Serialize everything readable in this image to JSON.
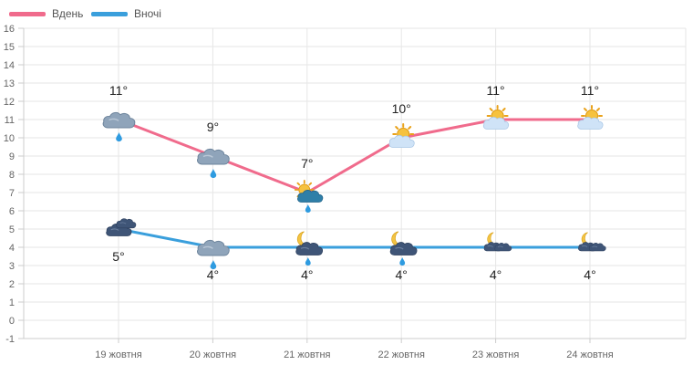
{
  "chart_data": {
    "type": "line",
    "categories": [
      "19 жовтня",
      "20 жовтня",
      "21 жовтня",
      "22 жовтня",
      "23 жовтня",
      "24 жовтня"
    ],
    "series": [
      {
        "name": "Вдень",
        "values": [
          11,
          9,
          7,
          10,
          11,
          11
        ],
        "labels": [
          "11°",
          "9°",
          "7°",
          "10°",
          "11°",
          "11°"
        ],
        "icons": [
          "cloud-rain-icon",
          "cloud-rain-icon",
          "sun-cloud-rain-icon",
          "sun-cloud-icon",
          "sun-cloud-icon",
          "sun-cloud-icon"
        ],
        "color": "#f06b8c"
      },
      {
        "name": "Вночі",
        "values": [
          5,
          4,
          4,
          4,
          4,
          4
        ],
        "labels": [
          "5°",
          "4°",
          "4°",
          "4°",
          "4°",
          "4°"
        ],
        "icons": [
          "dark-cloud-icon",
          "cloud-rain-icon",
          "moon-cloud-rain-icon",
          "moon-cloud-rain-icon",
          "moon-cloud-icon",
          "moon-cloud-icon"
        ],
        "color": "#3a9fdc"
      }
    ],
    "yticks": [
      "-1",
      "0",
      "1",
      "2",
      "3",
      "4",
      "5",
      "6",
      "7",
      "8",
      "9",
      "10",
      "11",
      "12",
      "13",
      "14",
      "15",
      "16"
    ],
    "ylim": [
      -1,
      16
    ],
    "grid": true,
    "legend": "top-left"
  }
}
